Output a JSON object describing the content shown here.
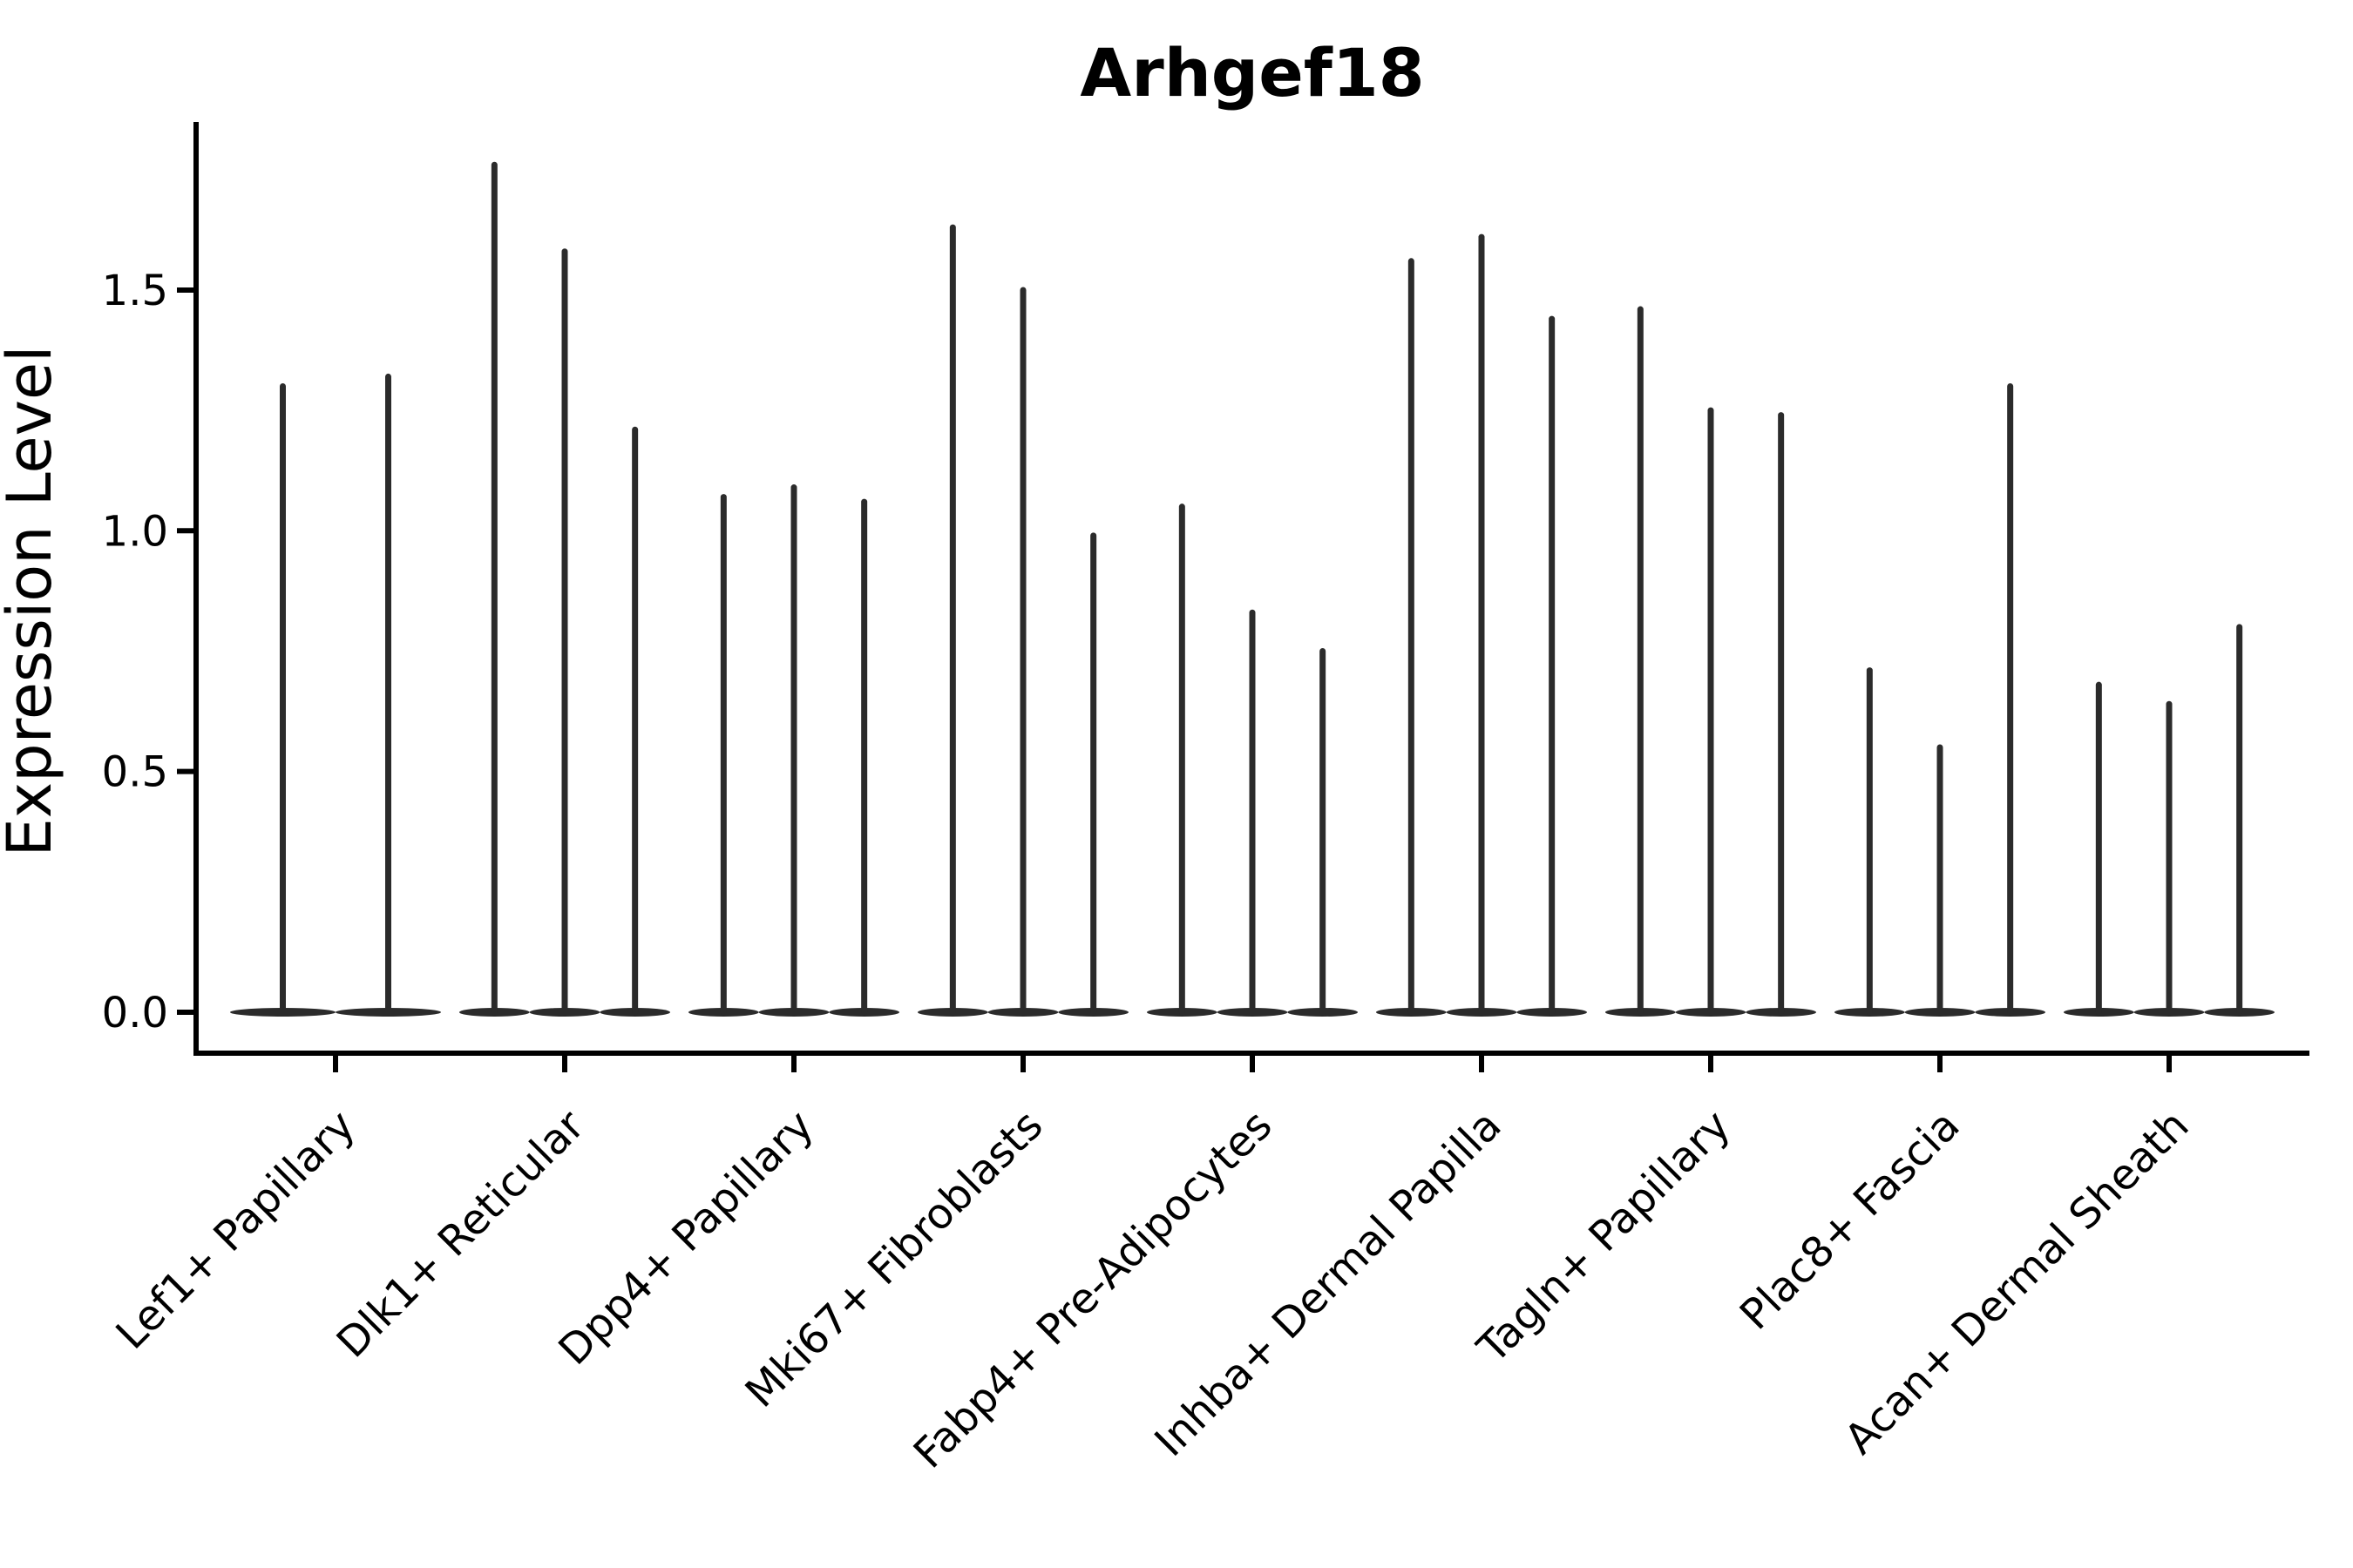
{
  "title": "Arhgef18",
  "chart_data": {
    "type": "violin",
    "title": "Arhgef18",
    "xlabel": "",
    "ylabel": "Expression Level",
    "yticks": [
      0.0,
      0.5,
      1.0,
      1.5
    ],
    "ylim": [
      -0.09,
      1.85
    ],
    "grid": false,
    "legend": "none",
    "violin_color": "#2b2b2b",
    "axis_color": "#000000",
    "background_color": "#ffffff",
    "categories": [
      "Lef1+ Papillary",
      "Dlk1+ Reticular",
      "Dpp4+ Papillary",
      "Mki67+ Fibroblasts",
      "Fabp4+ Pre-Adipocytes",
      "Inhba+ Dermal Papilla",
      "Tagln+ Papillary",
      "Plac8+ Fascia",
      "Acan+ Dermal Sheath"
    ],
    "series": [
      {
        "category": "Lef1+ Papillary",
        "violin_peaks": [
          1.3,
          1.32
        ]
      },
      {
        "category": "Dlk1+ Reticular",
        "violin_peaks": [
          1.76,
          1.58,
          1.21
        ]
      },
      {
        "category": "Dpp4+ Papillary",
        "violin_peaks": [
          1.07,
          1.09,
          1.06
        ]
      },
      {
        "category": "Mki67+ Fibroblasts",
        "violin_peaks": [
          1.63,
          1.5,
          0.99
        ]
      },
      {
        "category": "Fabp4+ Pre-Adipocytes",
        "violin_peaks": [
          1.05,
          0.83,
          0.75
        ]
      },
      {
        "category": "Inhba+ Dermal Papilla",
        "violin_peaks": [
          1.56,
          1.61,
          1.44
        ]
      },
      {
        "category": "Tagln+ Papillary",
        "violin_peaks": [
          1.46,
          1.25,
          1.24
        ]
      },
      {
        "category": "Plac8+ Fascia",
        "violin_peaks": [
          0.71,
          0.55,
          1.3
        ]
      },
      {
        "category": "Acan+ Dermal Sheath",
        "violin_peaks": [
          0.68,
          0.64,
          0.8
        ]
      }
    ]
  }
}
